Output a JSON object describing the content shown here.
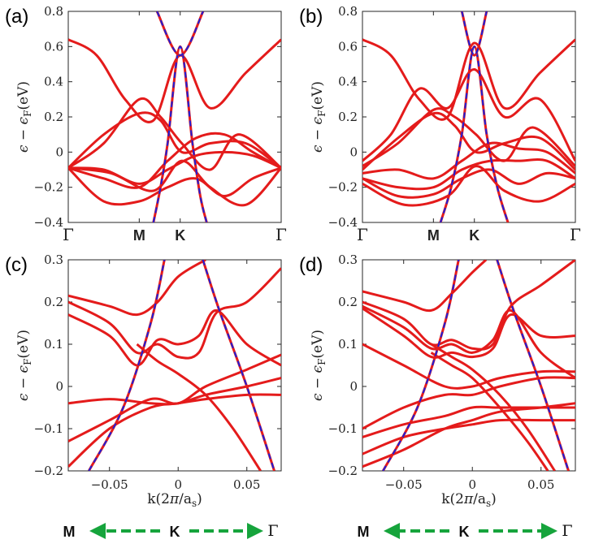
{
  "figure": {
    "colors": {
      "band": "#e41b1b",
      "dirac": "#1f1fd8",
      "arrow": "#16a43c",
      "axis": "#262626"
    }
  },
  "chart_data": [
    {
      "type": "line",
      "panel": "(a)",
      "ylabel": "ε − ε_F(eV)",
      "ylim": [
        -0.4,
        0.8
      ],
      "yticks": [
        -0.4,
        -0.2,
        0,
        0.2,
        0.4,
        0.6,
        0.8
      ],
      "ytick_labels": [
        "-0.4",
        "-0.2",
        "0",
        "0.2",
        "0.4",
        "0.6",
        "0.8"
      ],
      "xlim": [
        0,
        3
      ],
      "xticks": [
        {
          "x": 0,
          "label": "Γ"
        },
        {
          "x": 1,
          "label": "M"
        },
        {
          "x": 1.577,
          "label": "K"
        },
        {
          "x": 3,
          "label": "Γ"
        }
      ],
      "series": [
        {
          "name": "band",
          "style": "red",
          "x": [
            0,
            0.4,
            0.8,
            1.2,
            1.577,
            2.0,
            2.5,
            3.0
          ],
          "y": [
            0.64,
            0.55,
            0.3,
            0.18,
            0.55,
            0.25,
            0.45,
            0.64
          ]
        },
        {
          "name": "band",
          "style": "red",
          "x": [
            0,
            0.5,
            1.0,
            1.3,
            1.6,
            2.0,
            2.4,
            3.0
          ],
          "y": [
            -0.09,
            0.05,
            0.3,
            0.2,
            0.05,
            -0.1,
            0.1,
            -0.09
          ]
        },
        {
          "name": "band",
          "style": "red",
          "x": [
            0,
            0.5,
            1.0,
            1.3,
            1.6,
            2.0,
            2.5,
            3.0
          ],
          "y": [
            -0.09,
            0.1,
            0.22,
            0.18,
            0.0,
            0.05,
            0.05,
            -0.09
          ]
        },
        {
          "name": "band",
          "style": "red",
          "x": [
            0,
            0.5,
            1.0,
            1.4,
            1.8,
            2.2,
            2.6,
            3.0
          ],
          "y": [
            -0.09,
            -0.15,
            -0.2,
            -0.05,
            0.08,
            0.1,
            0.0,
            -0.09
          ]
        },
        {
          "name": "band",
          "style": "red",
          "x": [
            0,
            0.5,
            1.0,
            1.4,
            1.8,
            2.2,
            2.6,
            3.0
          ],
          "y": [
            -0.09,
            -0.1,
            -0.18,
            -0.1,
            -0.02,
            0.0,
            -0.02,
            -0.09
          ]
        },
        {
          "name": "band",
          "style": "red",
          "x": [
            0,
            0.5,
            1.0,
            1.4,
            1.8,
            2.2,
            2.6,
            3.0
          ],
          "y": [
            -0.09,
            -0.28,
            -0.28,
            -0.2,
            -0.15,
            -0.25,
            -0.15,
            -0.09
          ]
        },
        {
          "name": "band",
          "style": "red",
          "x": [
            0,
            0.6,
            1.2,
            1.6,
            2.0,
            2.5,
            3.0
          ],
          "y": [
            -0.09,
            -0.12,
            -0.22,
            -0.05,
            -0.2,
            -0.3,
            -0.09
          ]
        },
        {
          "name": "dirac",
          "style": "dashed",
          "x": [
            1.2,
            1.3,
            1.4,
            1.577,
            1.75,
            1.86,
            1.95
          ],
          "y": [
            -0.4,
            -0.2,
            0.05,
            0.6,
            0.05,
            -0.25,
            -0.4
          ]
        },
        {
          "name": "dirac",
          "style": "dashed",
          "x": [
            1.25,
            1.577,
            1.9
          ],
          "y": [
            0.8,
            0.55,
            0.8
          ]
        }
      ]
    },
    {
      "type": "line",
      "panel": "(b)",
      "ylabel": "ε − ε_F(eV)",
      "ylim": [
        -0.4,
        0.8
      ],
      "yticks": [
        -0.4,
        -0.2,
        0,
        0.2,
        0.4,
        0.6,
        0.8
      ],
      "ytick_labels": [
        "-0.4",
        "-0.2",
        "0",
        "0.2",
        "0.4",
        "0.6",
        "0.8"
      ],
      "xlim": [
        0,
        3
      ],
      "xticks": [
        {
          "x": 0,
          "label": "Γ"
        },
        {
          "x": 1,
          "label": "M"
        },
        {
          "x": 1.577,
          "label": "K"
        },
        {
          "x": 3,
          "label": "Γ"
        }
      ],
      "series": [
        {
          "name": "band",
          "style": "red",
          "x": [
            0,
            0.4,
            0.8,
            1.2,
            1.577,
            2.0,
            2.5,
            3.0
          ],
          "y": [
            0.64,
            0.55,
            0.3,
            0.2,
            0.62,
            0.25,
            0.45,
            0.64
          ]
        },
        {
          "name": "band",
          "style": "red",
          "x": [
            0,
            0.4,
            0.8,
            1.2,
            1.577,
            2.0,
            2.5,
            3.0
          ],
          "y": [
            -0.05,
            0.1,
            0.36,
            0.25,
            0.47,
            0.2,
            0.3,
            -0.05
          ]
        },
        {
          "name": "band",
          "style": "red",
          "x": [
            0,
            0.5,
            1.0,
            1.3,
            1.6,
            2.0,
            2.4,
            3.0
          ],
          "y": [
            -0.08,
            0.05,
            0.24,
            0.2,
            0.1,
            -0.05,
            0.14,
            -0.08
          ]
        },
        {
          "name": "band",
          "style": "red",
          "x": [
            0,
            0.5,
            1.0,
            1.3,
            1.6,
            2.0,
            2.5,
            3.0
          ],
          "y": [
            -0.1,
            0.08,
            0.22,
            0.15,
            0.0,
            0.05,
            0.08,
            -0.1
          ]
        },
        {
          "name": "band",
          "style": "red",
          "x": [
            0,
            0.5,
            1.0,
            1.4,
            1.8,
            2.2,
            2.6,
            3.0
          ],
          "y": [
            -0.12,
            -0.1,
            -0.15,
            -0.05,
            0.05,
            0.02,
            0.0,
            -0.12
          ]
        },
        {
          "name": "band",
          "style": "red",
          "x": [
            0,
            0.5,
            1.0,
            1.4,
            1.8,
            2.2,
            2.6,
            3.0
          ],
          "y": [
            -0.15,
            -0.2,
            -0.2,
            -0.1,
            -0.05,
            -0.05,
            -0.05,
            -0.15
          ]
        },
        {
          "name": "band",
          "style": "red",
          "x": [
            0,
            0.5,
            1.0,
            1.4,
            1.8,
            2.2,
            2.6,
            3.0
          ],
          "y": [
            -0.15,
            -0.25,
            -0.24,
            -0.15,
            -0.1,
            -0.18,
            -0.12,
            -0.15
          ]
        },
        {
          "name": "band",
          "style": "red",
          "x": [
            0,
            0.6,
            1.2,
            1.6,
            2.0,
            2.5,
            3.0
          ],
          "y": [
            -0.18,
            -0.3,
            -0.25,
            -0.08,
            -0.22,
            -0.28,
            -0.18
          ]
        },
        {
          "name": "dirac",
          "style": "dashed",
          "x": [
            1.1,
            1.25,
            1.4,
            1.577,
            1.75,
            1.9,
            2.05
          ],
          "y": [
            -0.4,
            -0.2,
            0.1,
            0.6,
            0.1,
            -0.2,
            -0.4
          ]
        },
        {
          "name": "dirac",
          "style": "dashed",
          "x": [
            1.4,
            1.577,
            1.75
          ],
          "y": [
            0.8,
            0.55,
            0.8
          ]
        }
      ]
    },
    {
      "type": "line",
      "panel": "(c)",
      "ylabel": "ε − ε_F(eV)",
      "xlabel": "k(2π/a_s)",
      "ylim": [
        -0.2,
        0.3
      ],
      "yticks": [
        -0.2,
        -0.1,
        0,
        0.1,
        0.2,
        0.3
      ],
      "ytick_labels": [
        "-0.2",
        "-0.1",
        "0",
        "0.1",
        "0.2",
        "0.3"
      ],
      "xlim": [
        -0.08,
        0.075
      ],
      "xticks": [
        {
          "x": -0.05,
          "label": "-0.05"
        },
        {
          "x": 0,
          "label": "0"
        },
        {
          "x": 0.05,
          "label": "0.05"
        }
      ],
      "series": [
        {
          "name": "band",
          "style": "red",
          "x": [
            -0.08,
            -0.05,
            -0.03,
            -0.015,
            0.0,
            0.02
          ],
          "y": [
            0.215,
            0.19,
            0.17,
            0.2,
            0.26,
            0.3
          ]
        },
        {
          "name": "band",
          "style": "red",
          "x": [
            -0.08,
            -0.05,
            -0.03,
            -0.015,
            0.0,
            0.015,
            0.028,
            0.05,
            0.075
          ],
          "y": [
            0.2,
            0.15,
            0.08,
            0.1,
            0.07,
            0.08,
            0.175,
            0.2,
            0.28
          ]
        },
        {
          "name": "band",
          "style": "red",
          "x": [
            -0.08,
            -0.05,
            -0.03,
            -0.015,
            0.0,
            0.015,
            0.028,
            0.05,
            0.075
          ],
          "y": [
            0.17,
            0.12,
            0.05,
            0.11,
            0.1,
            0.12,
            0.18,
            0.1,
            0.05
          ]
        },
        {
          "name": "band",
          "style": "red",
          "x": [
            -0.08,
            -0.05,
            -0.02,
            0.0,
            0.02,
            0.05,
            0.075
          ],
          "y": [
            -0.13,
            -0.08,
            -0.03,
            -0.04,
            0.0,
            0.04,
            0.075
          ]
        },
        {
          "name": "band",
          "style": "red",
          "x": [
            -0.08,
            -0.05,
            -0.02,
            0.0,
            0.02,
            0.05,
            0.075
          ],
          "y": [
            -0.19,
            -0.1,
            -0.05,
            -0.04,
            -0.03,
            -0.02,
            -0.02
          ]
        },
        {
          "name": "band",
          "style": "red",
          "x": [
            -0.08,
            -0.05,
            -0.02,
            0.0,
            0.02,
            0.05,
            0.075
          ],
          "y": [
            -0.04,
            -0.03,
            -0.04,
            -0.04,
            -0.02,
            0.0,
            0.02
          ]
        },
        {
          "name": "band",
          "style": "red",
          "x": [
            -0.03,
            -0.015,
            0.0,
            0.02,
            0.04,
            0.06
          ],
          "y": [
            0.1,
            0.06,
            0.03,
            -0.02,
            -0.1,
            -0.2
          ]
        },
        {
          "name": "dirac",
          "style": "dashed",
          "x": [
            -0.065,
            -0.04,
            -0.02,
            -0.01
          ],
          "y": [
            -0.2,
            -0.05,
            0.15,
            0.3
          ]
        },
        {
          "name": "dirac",
          "style": "dashed",
          "x": [
            0.018,
            0.03,
            0.05,
            0.07
          ],
          "y": [
            0.3,
            0.18,
            0.0,
            -0.2
          ]
        }
      ],
      "arrows": {
        "left": "M",
        "center": "K",
        "right": "Γ"
      }
    },
    {
      "type": "line",
      "panel": "(d)",
      "ylabel": "ε − ε_F(eV)",
      "xlabel": "k(2π/a_s)",
      "ylim": [
        -0.2,
        0.3
      ],
      "yticks": [
        -0.2,
        -0.1,
        0,
        0.1,
        0.2,
        0.3
      ],
      "ytick_labels": [
        "-0.2",
        "-0.1",
        "0",
        "0.1",
        "0.2",
        "0.3"
      ],
      "xlim": [
        -0.08,
        0.075
      ],
      "xticks": [
        {
          "x": -0.05,
          "label": "-0.05"
        },
        {
          "x": 0,
          "label": "0"
        },
        {
          "x": 0.05,
          "label": "0.05"
        }
      ],
      "series": [
        {
          "name": "band",
          "style": "red",
          "x": [
            -0.08,
            -0.05,
            -0.03,
            -0.015,
            0.0,
            0.01
          ],
          "y": [
            0.225,
            0.2,
            0.18,
            0.22,
            0.27,
            0.3
          ]
        },
        {
          "name": "band",
          "style": "red",
          "x": [
            -0.08,
            -0.05,
            -0.03,
            -0.015,
            0.0,
            0.015,
            0.028,
            0.05,
            0.075
          ],
          "y": [
            0.2,
            0.16,
            0.1,
            0.11,
            0.09,
            0.1,
            0.19,
            0.24,
            0.3
          ]
        },
        {
          "name": "band",
          "style": "red",
          "x": [
            -0.08,
            -0.05,
            -0.03,
            -0.015,
            0.0,
            0.015,
            0.028,
            0.05,
            0.075
          ],
          "y": [
            0.19,
            0.14,
            0.09,
            0.1,
            0.08,
            0.11,
            0.18,
            0.08,
            0.02
          ]
        },
        {
          "name": "band",
          "style": "red",
          "x": [
            -0.08,
            -0.05,
            -0.03,
            -0.015,
            0.0,
            0.015,
            0.028,
            0.05,
            0.075
          ],
          "y": [
            0.185,
            0.12,
            0.07,
            0.08,
            0.07,
            0.09,
            0.17,
            0.12,
            0.12
          ]
        },
        {
          "name": "band",
          "style": "red",
          "x": [
            -0.08,
            -0.05,
            -0.02,
            0.0,
            0.02,
            0.05,
            0.075
          ],
          "y": [
            0.1,
            0.05,
            0.0,
            0.0,
            0.02,
            0.035,
            0.035
          ]
        },
        {
          "name": "band",
          "style": "red",
          "x": [
            -0.08,
            -0.05,
            -0.02,
            0.0,
            0.02,
            0.05,
            0.075
          ],
          "y": [
            -0.1,
            -0.05,
            -0.02,
            -0.02,
            0.0,
            0.02,
            0.02
          ]
        },
        {
          "name": "band",
          "style": "red",
          "x": [
            -0.08,
            -0.05,
            -0.02,
            0.0,
            0.02,
            0.05,
            0.075
          ],
          "y": [
            -0.12,
            -0.09,
            -0.07,
            -0.05,
            -0.05,
            -0.05,
            -0.05
          ]
        },
        {
          "name": "band",
          "style": "red",
          "x": [
            -0.08,
            -0.05,
            -0.02,
            0.0,
            0.02,
            0.05,
            0.075
          ],
          "y": [
            -0.16,
            -0.12,
            -0.1,
            -0.09,
            -0.08,
            -0.08,
            -0.08
          ]
        },
        {
          "name": "band",
          "style": "red",
          "x": [
            -0.08,
            -0.05,
            -0.02,
            0.0,
            0.02,
            0.05,
            0.075
          ],
          "y": [
            -0.19,
            -0.15,
            -0.1,
            -0.08,
            -0.06,
            -0.05,
            -0.04
          ]
        },
        {
          "name": "band",
          "style": "red",
          "x": [
            -0.03,
            -0.015,
            0.0,
            0.02,
            0.04,
            0.06
          ],
          "y": [
            0.1,
            0.07,
            0.04,
            -0.02,
            -0.1,
            -0.2
          ]
        },
        {
          "name": "band",
          "style": "red",
          "x": [
            -0.03,
            -0.015,
            0.0,
            0.02,
            0.04,
            0.055
          ],
          "y": [
            0.08,
            0.05,
            0.02,
            -0.05,
            -0.13,
            -0.2
          ]
        },
        {
          "name": "dirac",
          "style": "dashed",
          "x": [
            -0.065,
            -0.04,
            -0.02,
            -0.01
          ],
          "y": [
            -0.2,
            -0.05,
            0.15,
            0.3
          ]
        },
        {
          "name": "dirac",
          "style": "dashed",
          "x": [
            0.018,
            0.03,
            0.05,
            0.07
          ],
          "y": [
            0.3,
            0.18,
            0.0,
            -0.2
          ]
        }
      ],
      "arrows": {
        "left": "M",
        "center": "K",
        "right": "Γ"
      }
    }
  ]
}
